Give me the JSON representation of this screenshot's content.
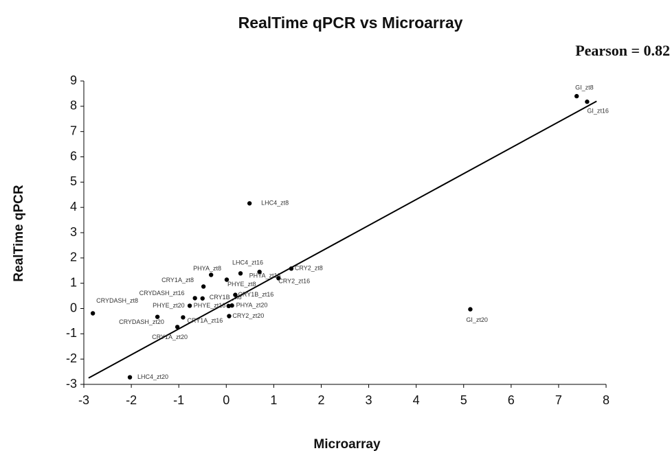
{
  "chart_data": {
    "type": "scatter",
    "title": "RealTime qPCR vs Microarray",
    "annotation": "Pearson = 0.82",
    "x_label": "Microarray",
    "y_label": "RealTime qPCR",
    "labels": [
      "GI_zt8",
      "GI_zt16",
      "LHC4_zt8",
      "LHC4_zt16",
      "CRY2_zt8",
      "PHYA_zt16",
      "PHYA_zt8",
      "PHYE_zt8",
      "CRY2_zt16",
      "CRY1A_zt8",
      "CRYDASH_zt16",
      "CRY1B_zt8",
      "CRY1B_zt16",
      "PHYE_zt20",
      "PHYE_zt16",
      "PHYA_zt20",
      "CRY2_zt20",
      "CRYDASH_zt20",
      "CRY1A_zt16",
      "CRY1A_zt20",
      "CRYDASH_zt8",
      "LHC4_zt20",
      "GI_zt20"
    ],
    "x": [
      7.38,
      7.6,
      0.49,
      0.3,
      1.37,
      0.7,
      -0.32,
      0.01,
      1.1,
      -0.48,
      -0.66,
      -0.5,
      0.19,
      -0.77,
      0.05,
      0.12,
      0.06,
      -1.45,
      -0.91,
      -1.03,
      -2.81,
      -2.03,
      5.14
    ],
    "y": [
      8.4,
      8.18,
      4.16,
      1.39,
      1.58,
      1.45,
      1.33,
      1.14,
      1.2,
      0.87,
      0.41,
      0.4,
      0.54,
      0.11,
      0.1,
      0.12,
      -0.3,
      -0.33,
      -0.35,
      -0.73,
      -0.19,
      -2.72,
      -0.03
    ],
    "color": "#000000",
    "trend_line": {
      "x": [
        -2.9,
        7.8
      ],
      "y": [
        -2.75,
        8.2
      ]
    },
    "xlim": [
      -3,
      8
    ],
    "xticks": [
      -3,
      -2,
      -1,
      0,
      1,
      2,
      3,
      4,
      5,
      6,
      7,
      8
    ],
    "ylim": [
      -3,
      9
    ],
    "yticks": [
      -3,
      -2,
      -1,
      0,
      1,
      2,
      3,
      4,
      5,
      6,
      7,
      8,
      9
    ],
    "grid": false
  }
}
